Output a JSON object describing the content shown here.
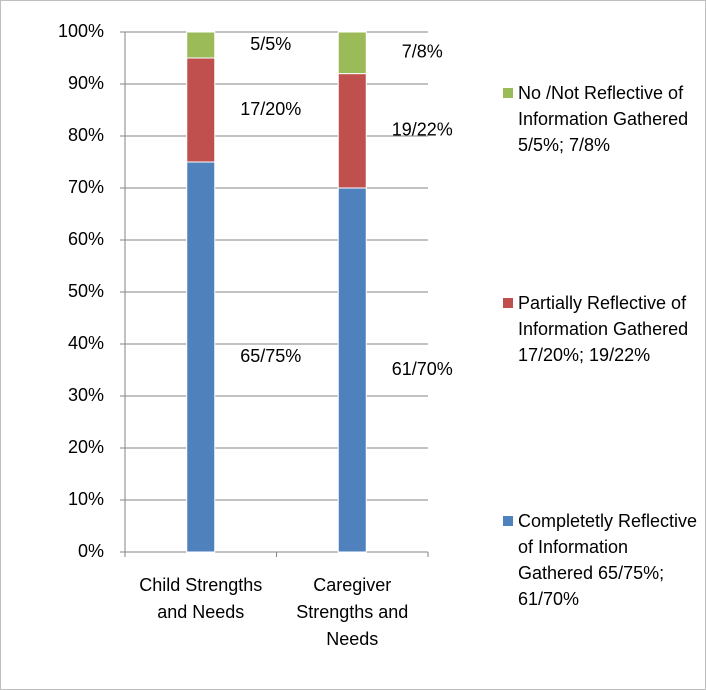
{
  "chart_data": {
    "type": "stacked_bar",
    "categories": [
      "Child Strengths and Needs",
      "Caregiver Strengths and Needs"
    ],
    "series": [
      {
        "name": "Completetly Reflective of Information Gathered 65/75%; 61/70%",
        "color": "#4f81bd",
        "values": [
          75,
          70
        ],
        "value_labels": [
          "65/75%",
          "61/70%"
        ]
      },
      {
        "name": "Partially Reflective of Information Gathered 17/20%; 19/22%",
        "color": "#c0504d",
        "values": [
          20,
          22
        ],
        "value_labels": [
          "17/20%",
          "19/22%"
        ]
      },
      {
        "name": "No /Not Reflective of Information Gathered 5/5%; 7/8%",
        "color": "#9bbb59",
        "values": [
          5,
          8
        ],
        "value_labels": [
          "5/5%",
          "7/8%"
        ]
      }
    ],
    "ylim": [
      0,
      100
    ],
    "yticks": [
      {
        "value": 0,
        "label": "0%"
      },
      {
        "value": 10,
        "label": "10%"
      },
      {
        "value": 20,
        "label": "20%"
      },
      {
        "value": 30,
        "label": "30%"
      },
      {
        "value": 40,
        "label": "40%"
      },
      {
        "value": 50,
        "label": "50%"
      },
      {
        "value": 60,
        "label": "60%"
      },
      {
        "value": 70,
        "label": "70%"
      },
      {
        "value": 80,
        "label": "80%"
      },
      {
        "value": 90,
        "label": "90%"
      },
      {
        "value": 100,
        "label": "100%"
      }
    ],
    "grid": true,
    "legend": "right"
  }
}
